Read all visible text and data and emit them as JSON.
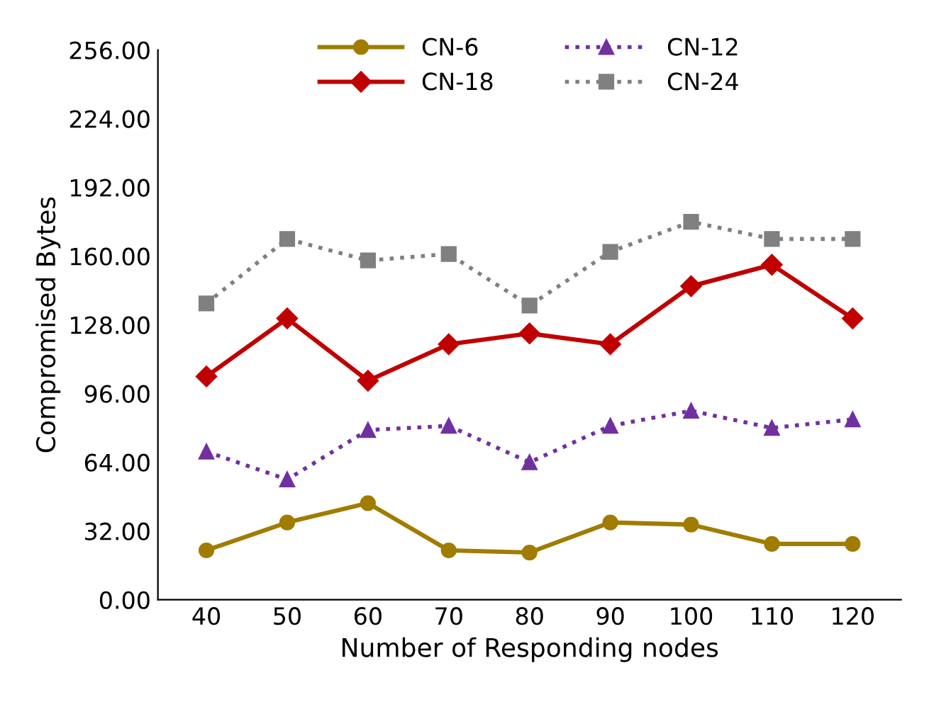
{
  "chart_data": {
    "type": "line",
    "xlabel": "Number of Responding nodes",
    "ylabel": "Compromised Bytes",
    "categories": [
      "40",
      "50",
      "60",
      "70",
      "80",
      "90",
      "100",
      "110",
      "120"
    ],
    "series": [
      {
        "name": "CN-6",
        "color": "#a07c00",
        "marker": "circle",
        "line_style": "solid",
        "values": [
          23,
          36,
          45,
          23,
          22,
          36,
          35,
          26,
          26
        ]
      },
      {
        "name": "CN-12",
        "color": "#7030a0",
        "marker": "triangle",
        "line_style": "dotted",
        "values": [
          69,
          56,
          79,
          81,
          64,
          81,
          88,
          80,
          84
        ]
      },
      {
        "name": "CN-18",
        "color": "#c00000",
        "marker": "diamond",
        "line_style": "solid",
        "values": [
          104,
          131,
          102,
          119,
          124,
          119,
          146,
          156,
          131
        ]
      },
      {
        "name": "CN-24",
        "color": "#808080",
        "marker": "square",
        "line_style": "dotted",
        "values": [
          138,
          168,
          158,
          161,
          137,
          162,
          176,
          168,
          168
        ]
      }
    ],
    "ylim": [
      0,
      256
    ],
    "yticks": [
      {
        "value": 0,
        "label": "0.00"
      },
      {
        "value": 32,
        "label": "32.00"
      },
      {
        "value": 64,
        "label": "64.00"
      },
      {
        "value": 96,
        "label": "96.00"
      },
      {
        "value": 128,
        "label": "128.00"
      },
      {
        "value": 160,
        "label": "160.00"
      },
      {
        "value": 192,
        "label": "192.00"
      },
      {
        "value": 224,
        "label": "224.00"
      },
      {
        "value": 256,
        "label": "256.00"
      }
    ],
    "grid": false,
    "legend": "top"
  }
}
